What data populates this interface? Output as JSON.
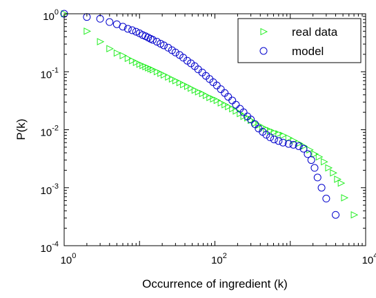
{
  "chart_data": {
    "type": "scatter",
    "xlabel": "Occurrence of ingredient (k)",
    "ylabel": "P(k)",
    "xscale": "log",
    "yscale": "log",
    "xlim": [
      1,
      10000
    ],
    "ylim": [
      0.0001,
      1
    ],
    "grid": false,
    "legend_position": "top-right",
    "x_ticks": [
      {
        "base": "10",
        "exp": "0",
        "value": 1
      },
      {
        "base": "10",
        "exp": "2",
        "value": 100
      },
      {
        "base": "10",
        "exp": "4",
        "value": 10000
      }
    ],
    "y_ticks": [
      {
        "base": "10",
        "exp": "0",
        "value": 1
      },
      {
        "base": "10",
        "exp": "-1",
        "value": 0.1
      },
      {
        "base": "10",
        "exp": "-2",
        "value": 0.01
      },
      {
        "base": "10",
        "exp": "-3",
        "value": 0.001
      },
      {
        "base": "10",
        "exp": "-4",
        "value": 0.0001
      }
    ],
    "series": [
      {
        "name": "real data",
        "marker": "triangle-right",
        "color": "#22ee22",
        "points": [
          [
            1,
            1.0
          ],
          [
            2,
            0.5
          ],
          [
            3,
            0.33
          ],
          [
            4,
            0.25
          ],
          [
            5,
            0.21
          ],
          [
            6,
            0.19
          ],
          [
            7,
            0.17
          ],
          [
            8,
            0.155
          ],
          [
            9,
            0.145
          ],
          [
            10,
            0.135
          ],
          [
            11,
            0.128
          ],
          [
            12,
            0.122
          ],
          [
            13,
            0.117
          ],
          [
            14,
            0.112
          ],
          [
            15,
            0.108
          ],
          [
            17,
            0.1
          ],
          [
            19,
            0.094
          ],
          [
            21,
            0.088
          ],
          [
            24,
            0.081
          ],
          [
            27,
            0.075
          ],
          [
            30,
            0.07
          ],
          [
            34,
            0.065
          ],
          [
            38,
            0.06
          ],
          [
            43,
            0.056
          ],
          [
            48,
            0.052
          ],
          [
            54,
            0.048
          ],
          [
            60,
            0.045
          ],
          [
            68,
            0.042
          ],
          [
            76,
            0.039
          ],
          [
            85,
            0.036
          ],
          [
            95,
            0.034
          ],
          [
            106,
            0.032
          ],
          [
            120,
            0.029
          ],
          [
            135,
            0.027
          ],
          [
            150,
            0.025
          ],
          [
            170,
            0.023
          ],
          [
            190,
            0.021
          ],
          [
            215,
            0.019
          ],
          [
            240,
            0.017
          ],
          [
            270,
            0.016
          ],
          [
            300,
            0.0145
          ],
          [
            340,
            0.013
          ],
          [
            380,
            0.012
          ],
          [
            430,
            0.011
          ],
          [
            480,
            0.0102
          ],
          [
            540,
            0.0096
          ],
          [
            610,
            0.009
          ],
          [
            700,
            0.0085
          ],
          [
            800,
            0.008
          ],
          [
            950,
            0.0072
          ],
          [
            1100,
            0.0065
          ],
          [
            1300,
            0.0058
          ],
          [
            1500,
            0.0052
          ],
          [
            1800,
            0.0045
          ],
          [
            2100,
            0.0038
          ],
          [
            2400,
            0.0034
          ],
          [
            2800,
            0.0028
          ],
          [
            3200,
            0.0022
          ],
          [
            3700,
            0.0018
          ],
          [
            4200,
            0.0014
          ],
          [
            4700,
            0.0012
          ],
          [
            5200,
            0.00067
          ],
          [
            7000,
            0.00034
          ]
        ]
      },
      {
        "name": "model",
        "marker": "circle",
        "color": "#0000cc",
        "points": [
          [
            1,
            1.0
          ],
          [
            2,
            0.88
          ],
          [
            3,
            0.82
          ],
          [
            4,
            0.72
          ],
          [
            5,
            0.66
          ],
          [
            6,
            0.6
          ],
          [
            7,
            0.55
          ],
          [
            8,
            0.52
          ],
          [
            9,
            0.49
          ],
          [
            10,
            0.46
          ],
          [
            11,
            0.43
          ],
          [
            12,
            0.41
          ],
          [
            13,
            0.39
          ],
          [
            14,
            0.37
          ],
          [
            15,
            0.355
          ],
          [
            17,
            0.33
          ],
          [
            19,
            0.305
          ],
          [
            21,
            0.285
          ],
          [
            24,
            0.26
          ],
          [
            27,
            0.235
          ],
          [
            30,
            0.215
          ],
          [
            34,
            0.195
          ],
          [
            38,
            0.175
          ],
          [
            43,
            0.155
          ],
          [
            48,
            0.14
          ],
          [
            54,
            0.125
          ],
          [
            60,
            0.11
          ],
          [
            68,
            0.097
          ],
          [
            76,
            0.085
          ],
          [
            85,
            0.075
          ],
          [
            95,
            0.066
          ],
          [
            106,
            0.058
          ],
          [
            120,
            0.05
          ],
          [
            135,
            0.043
          ],
          [
            150,
            0.037
          ],
          [
            170,
            0.032
          ],
          [
            190,
            0.027
          ],
          [
            215,
            0.023
          ],
          [
            240,
            0.02
          ],
          [
            270,
            0.017
          ],
          [
            300,
            0.015
          ],
          [
            340,
            0.0125
          ],
          [
            380,
            0.0105
          ],
          [
            430,
            0.0092
          ],
          [
            480,
            0.0082
          ],
          [
            540,
            0.0074
          ],
          [
            610,
            0.0068
          ],
          [
            700,
            0.0064
          ],
          [
            800,
            0.006
          ],
          [
            950,
            0.0057
          ],
          [
            1100,
            0.0055
          ],
          [
            1300,
            0.0052
          ],
          [
            1500,
            0.0047
          ],
          [
            1700,
            0.0038
          ],
          [
            1900,
            0.003
          ],
          [
            2100,
            0.0022
          ],
          [
            2300,
            0.0015
          ],
          [
            2600,
            0.001
          ],
          [
            3000,
            0.00065
          ],
          [
            4000,
            0.00034
          ]
        ]
      }
    ]
  }
}
